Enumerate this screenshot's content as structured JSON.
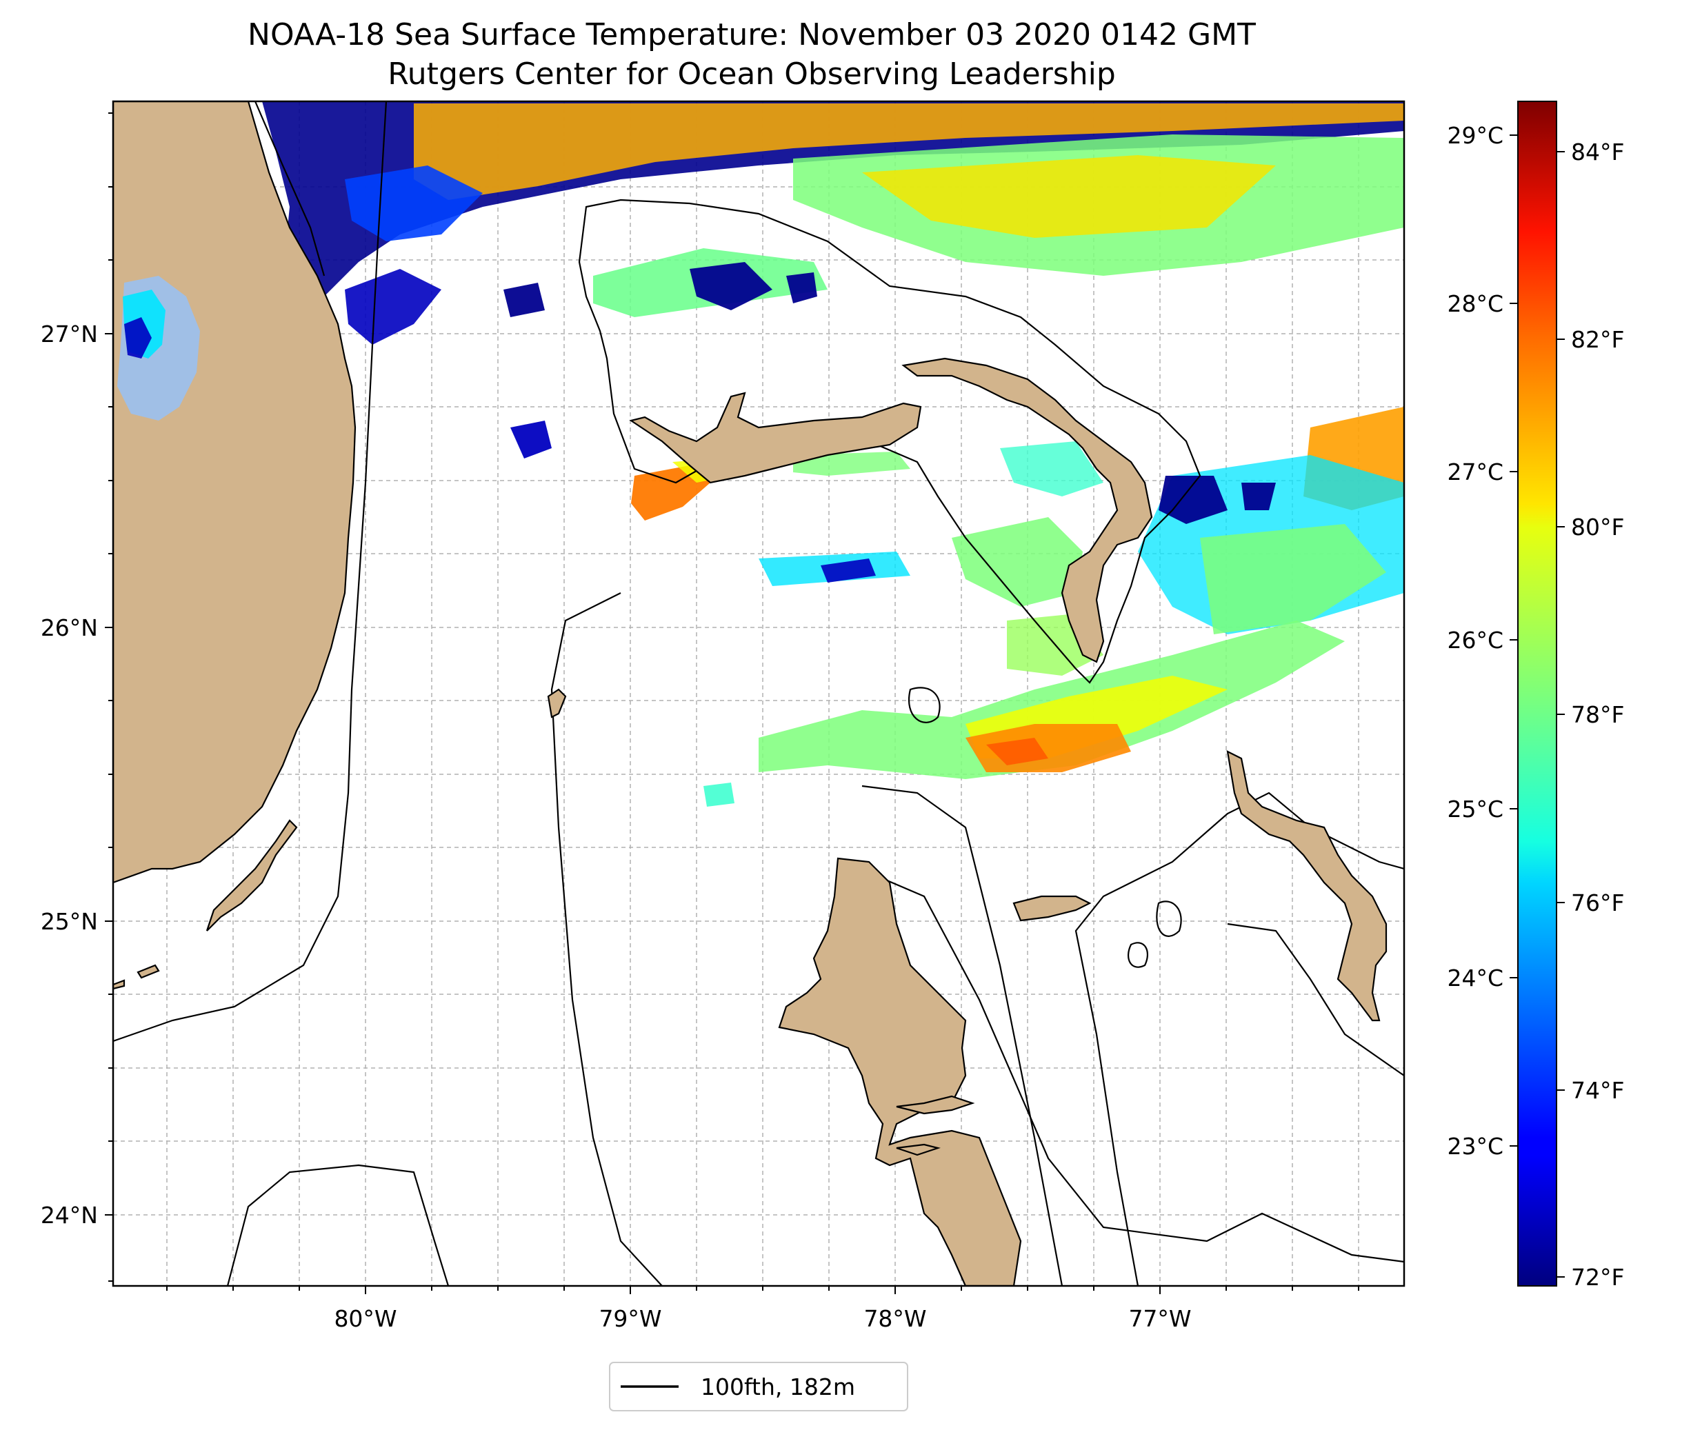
{
  "title": {
    "line1": "NOAA-18 Sea Surface Temperature: November 03 2020 0142 GMT",
    "line2": "Rutgers Center for Ocean Observing Leadership"
  },
  "map": {
    "lon_range": [
      -80.95,
      -76.1
    ],
    "lat_range": [
      23.75,
      27.8
    ],
    "gridlines": true,
    "land_color": "#d2b48c",
    "lake_color": "#a0bfe6",
    "lat_ticks": [
      "27°N",
      "26°N",
      "25°N",
      "24°N"
    ],
    "lon_ticks": [
      "80°W",
      "79°W",
      "78°W",
      "77°W"
    ]
  },
  "colorbar": {
    "colormap": "jet",
    "range_f": [
      71.9,
      84.9
    ],
    "celsius_ticks": [
      "29°C",
      "28°C",
      "27°C",
      "26°C",
      "25°C",
      "24°C",
      "23°C"
    ],
    "fahrenheit_ticks": [
      "84°F",
      "82°F",
      "80°F",
      "78°F",
      "76°F",
      "74°F",
      "72°F"
    ]
  },
  "legend": {
    "entry": "100fth, 182m",
    "placement": "bottom-center"
  },
  "colors": {
    "cold": "#00008f",
    "cool": "#0064ff",
    "cyan": "#00e5ff",
    "green": "#7dff7a",
    "yellow": "#f5ff00",
    "orange": "#ff9a00",
    "red": "#e61b00"
  }
}
